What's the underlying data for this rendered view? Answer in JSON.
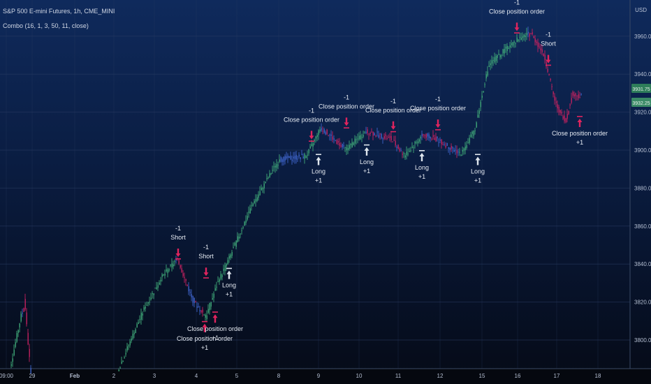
{
  "header": {
    "symbol": "S&P 500 E-mini Futures, 1h, CME_MINI",
    "study": "Combo (16, 1, 3, 50, 11, close)",
    "currency": "USD"
  },
  "colors": {
    "bull": "#3fa878",
    "bear": "#c3215f",
    "neutral": "#3d63c9",
    "grid": "#2a3d62",
    "axis_text": "#b5bfd2",
    "annotation": "#e6ebf3",
    "long_arrow": "#dfe6ee",
    "short_arrow": "#e0245e"
  },
  "price_badges": [
    "3931.75",
    "3932.25",
    "3932.25"
  ],
  "chart_data": {
    "type": "candlestick",
    "title": "S&P 500 E-mini Futures, 1h, CME_MINI",
    "study": "Combo (16, 1, 3, 50, 11, close)",
    "currency": "USD",
    "x_tick_labels": [
      "09:00",
      "29",
      "Feb",
      "2",
      "3",
      "4",
      "5",
      "8",
      "9",
      "10",
      "11",
      "12",
      "15",
      "16",
      "17",
      "18"
    ],
    "y_ticks": [
      3800,
      3820,
      3840,
      3860,
      3880,
      3900,
      3920,
      3940,
      3960
    ],
    "ylim": [
      3785,
      3972
    ],
    "grid": true,
    "price_path": [
      {
        "x": 7.5,
        "y": 3772
      },
      {
        "x": 36,
        "y": 3822
      },
      {
        "x": 46,
        "y": 3772
      },
      {
        "x": 100,
        "y": 3768
      },
      {
        "x": 165,
        "y": 3780
      },
      {
        "x": 205,
        "y": 3815
      },
      {
        "x": 230,
        "y": 3832
      },
      {
        "x": 255,
        "y": 3843
      },
      {
        "x": 275,
        "y": 3822
      },
      {
        "x": 295,
        "y": 3812
      },
      {
        "x": 312,
        "y": 3830
      },
      {
        "x": 330,
        "y": 3844
      },
      {
        "x": 360,
        "y": 3870
      },
      {
        "x": 400,
        "y": 3895
      },
      {
        "x": 440,
        "y": 3897
      },
      {
        "x": 460,
        "y": 3912
      },
      {
        "x": 495,
        "y": 3900
      },
      {
        "x": 525,
        "y": 3910
      },
      {
        "x": 560,
        "y": 3906
      },
      {
        "x": 580,
        "y": 3897
      },
      {
        "x": 605,
        "y": 3908
      },
      {
        "x": 625,
        "y": 3906
      },
      {
        "x": 660,
        "y": 3898
      },
      {
        "x": 680,
        "y": 3910
      },
      {
        "x": 700,
        "y": 3945
      },
      {
        "x": 740,
        "y": 3958
      },
      {
        "x": 760,
        "y": 3962
      },
      {
        "x": 780,
        "y": 3950
      },
      {
        "x": 795,
        "y": 3925
      },
      {
        "x": 810,
        "y": 3915
      },
      {
        "x": 820,
        "y": 3930
      },
      {
        "x": 833,
        "y": 3928
      }
    ],
    "signals": [
      {
        "x": 255,
        "y": 3843,
        "side": "short",
        "label": "Short",
        "qty": "-1"
      },
      {
        "x": 293,
        "y": 3810,
        "side": "long",
        "label": "Close position order",
        "qty": "+1"
      },
      {
        "x": 295,
        "y": 3833,
        "side": "short",
        "label": "Short",
        "qty": "-1"
      },
      {
        "x": 308,
        "y": 3815,
        "side": "long",
        "label": "Close position order",
        "qty": "+1"
      },
      {
        "x": 328,
        "y": 3838,
        "side": "long",
        "label": "Long",
        "qty": "+1"
      },
      {
        "x": 446,
        "y": 3905,
        "side": "short",
        "label": "Close position order",
        "qty": "-1"
      },
      {
        "x": 456,
        "y": 3898,
        "side": "long",
        "label": "Long",
        "qty": "+1"
      },
      {
        "x": 496,
        "y": 3912,
        "side": "short",
        "label": "Close position order",
        "qty": "-1"
      },
      {
        "x": 525,
        "y": 3903,
        "side": "long",
        "label": "Long",
        "qty": "+1"
      },
      {
        "x": 563,
        "y": 3910,
        "side": "short",
        "label": "Close position order",
        "qty": "-1"
      },
      {
        "x": 604,
        "y": 3900,
        "side": "long",
        "label": "Long",
        "qty": "+1"
      },
      {
        "x": 627,
        "y": 3911,
        "side": "short",
        "label": "Close position order",
        "qty": "-1"
      },
      {
        "x": 684,
        "y": 3898,
        "side": "long",
        "label": "Long",
        "qty": "+1"
      },
      {
        "x": 740,
        "y": 3962,
        "side": "short",
        "label": "Close position order",
        "qty": "-1"
      },
      {
        "x": 785,
        "y": 3945,
        "side": "short",
        "label": "Short",
        "qty": "-1"
      },
      {
        "x": 830,
        "y": 3918,
        "side": "long",
        "label": "Close position order",
        "qty": "+1"
      }
    ]
  }
}
